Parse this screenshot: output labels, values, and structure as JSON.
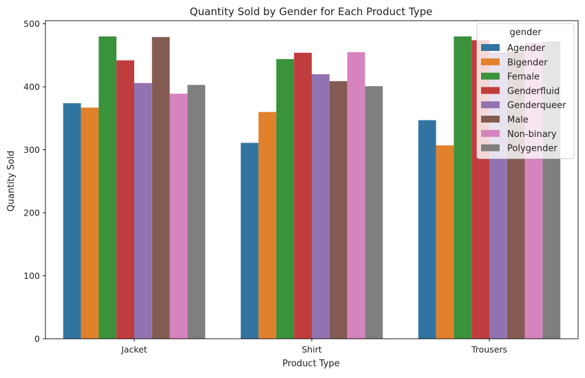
{
  "chart_data": {
    "type": "bar",
    "title": "Quantity Sold by Gender for Each Product Type",
    "xlabel": "Product Type",
    "ylabel": "Quantity Sold",
    "categories": [
      "Jacket",
      "Shirt",
      "Trousers"
    ],
    "ylim": [
      0,
      505
    ],
    "yticks": [
      0,
      100,
      200,
      300,
      400,
      500
    ],
    "grid": false,
    "legend": {
      "title": "gender",
      "placement": "top-right"
    },
    "series": [
      {
        "name": "Agender",
        "color": "#3274a1",
        "values": [
          374,
          311,
          347
        ]
      },
      {
        "name": "Bigender",
        "color": "#e1812c",
        "values": [
          367,
          360,
          307
        ]
      },
      {
        "name": "Female",
        "color": "#3a923a",
        "values": [
          480,
          444,
          480
        ]
      },
      {
        "name": "Genderfluid",
        "color": "#c03d3e",
        "values": [
          442,
          454,
          474
        ]
      },
      {
        "name": "Genderqueer",
        "color": "#9372b2",
        "values": [
          406,
          420,
          455
        ]
      },
      {
        "name": "Male",
        "color": "#845b53",
        "values": [
          479,
          409,
          456
        ]
      },
      {
        "name": "Non-binary",
        "color": "#d684bd",
        "values": [
          389,
          455,
          470
        ]
      },
      {
        "name": "Polygender",
        "color": "#7f7f7f",
        "values": [
          403,
          401,
          472
        ]
      }
    ]
  }
}
